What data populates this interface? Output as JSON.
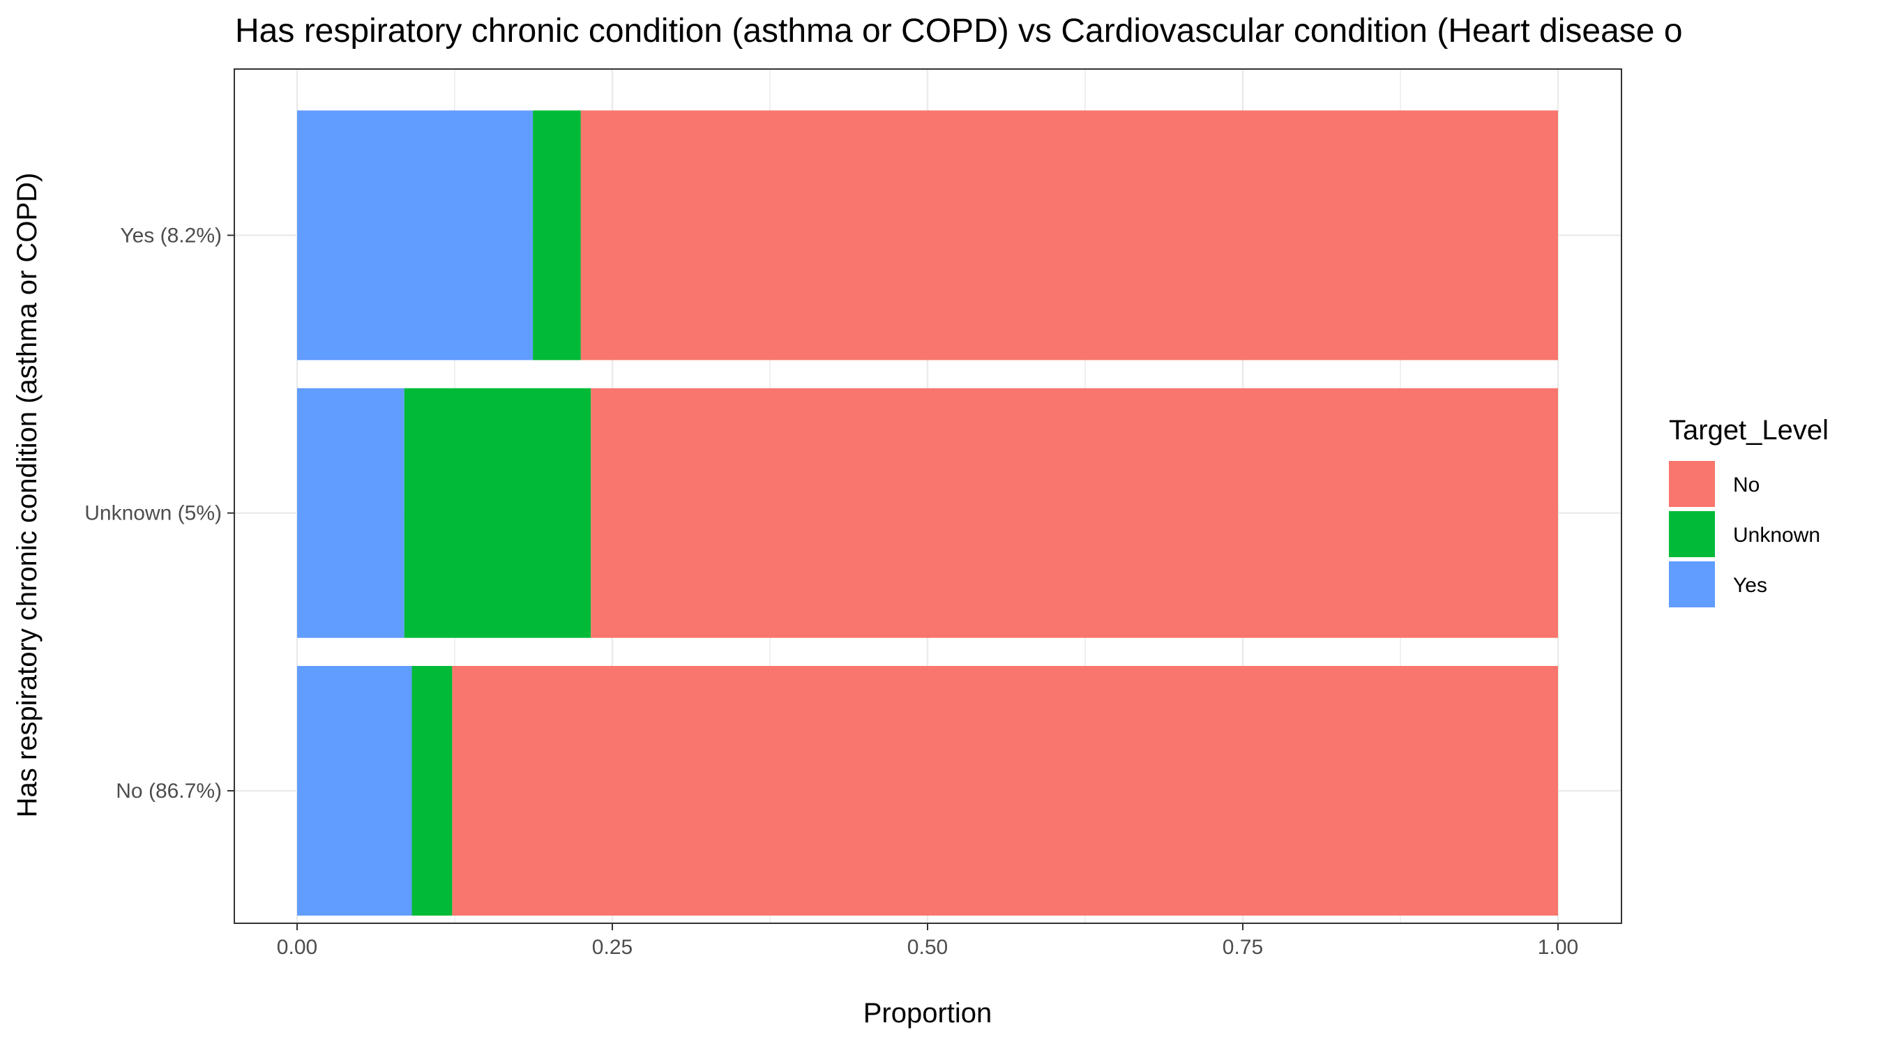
{
  "chart_data": {
    "type": "bar",
    "orientation": "horizontal",
    "stacked": true,
    "title": "Has respiratory chronic condition (asthma or COPD) vs Cardiovascular condition (Heart disease o",
    "xlabel": "Proportion",
    "ylabel": "Has respiratory chronic condition (asthma or COPD)",
    "xlim": [
      0,
      1
    ],
    "x_ticks": [
      "0.00",
      "0.25",
      "0.50",
      "0.75",
      "1.00"
    ],
    "grid": true,
    "categories": [
      "No (86.7%)",
      "Unknown (5%)",
      "Yes (8.2%)"
    ],
    "series": [
      {
        "name": "Yes",
        "color": "#619CFF",
        "values": [
          0.091,
          0.085,
          0.187
        ]
      },
      {
        "name": "Unknown",
        "color": "#00BA38",
        "values": [
          0.032,
          0.148,
          0.038
        ]
      },
      {
        "name": "No",
        "color": "#F8766D",
        "values": [
          0.877,
          0.767,
          0.775
        ]
      }
    ],
    "legend": {
      "title": "Target_Level",
      "position": "right",
      "items": [
        {
          "label": "No",
          "color": "#F8766D"
        },
        {
          "label": "Unknown",
          "color": "#00BA38"
        },
        {
          "label": "Yes",
          "color": "#619CFF"
        }
      ]
    }
  }
}
